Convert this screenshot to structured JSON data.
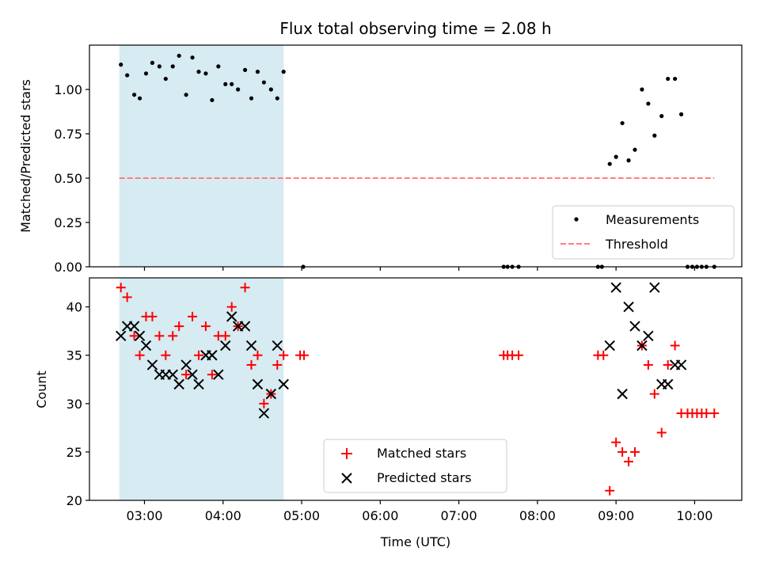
{
  "chart_data": {
    "title": "Flux total observing time = 2.08 h",
    "xlabel": "Time (UTC)",
    "xlim": [
      2.3,
      10.6
    ],
    "x_ticks": [
      {
        "value": 3,
        "label": "03:00"
      },
      {
        "value": 4,
        "label": "04:00"
      },
      {
        "value": 5,
        "label": "05:00"
      },
      {
        "value": 6,
        "label": "06:00"
      },
      {
        "value": 7,
        "label": "07:00"
      },
      {
        "value": 8,
        "label": "08:00"
      },
      {
        "value": 9,
        "label": "09:00"
      },
      {
        "value": 10,
        "label": "10:00"
      }
    ],
    "shaded_span": [
      2.68,
      4.77
    ],
    "top": {
      "type": "scatter",
      "ylabel": "Matched/Predicted stars",
      "ylim": [
        0,
        1.25
      ],
      "y_ticks": [
        {
          "value": 0,
          "label": "0.00"
        },
        {
          "value": 0.25,
          "label": "0.25"
        },
        {
          "value": 0.5,
          "label": "0.50"
        },
        {
          "value": 0.75,
          "label": "0.75"
        },
        {
          "value": 1.0,
          "label": "1.00"
        }
      ],
      "legend": {
        "position": "lower-right",
        "entries": [
          "Measurements",
          "Threshold"
        ]
      },
      "threshold": {
        "name": "Threshold",
        "value": 0.5,
        "x_range": [
          2.68,
          10.25
        ],
        "color": "#ff8080"
      },
      "measurements": {
        "name": "Measurements",
        "color": "#000000",
        "points": [
          [
            2.7,
            1.14
          ],
          [
            2.78,
            1.08
          ],
          [
            2.87,
            0.97
          ],
          [
            2.94,
            0.95
          ],
          [
            3.02,
            1.09
          ],
          [
            3.1,
            1.15
          ],
          [
            3.19,
            1.13
          ],
          [
            3.27,
            1.06
          ],
          [
            3.36,
            1.13
          ],
          [
            3.44,
            1.19
          ],
          [
            3.53,
            0.97
          ],
          [
            3.61,
            1.18
          ],
          [
            3.69,
            1.1
          ],
          [
            3.78,
            1.09
          ],
          [
            3.86,
            0.94
          ],
          [
            3.94,
            1.13
          ],
          [
            4.03,
            1.03
          ],
          [
            4.11,
            1.03
          ],
          [
            4.19,
            1.0
          ],
          [
            4.28,
            1.11
          ],
          [
            4.36,
            0.95
          ],
          [
            4.44,
            1.1
          ],
          [
            4.52,
            1.04
          ],
          [
            4.61,
            1.0
          ],
          [
            4.69,
            0.95
          ],
          [
            4.77,
            1.1
          ],
          [
            5.02,
            0.0
          ],
          [
            7.57,
            0.0
          ],
          [
            7.62,
            0.0
          ],
          [
            7.68,
            0.0
          ],
          [
            7.76,
            0.0
          ],
          [
            8.77,
            0.0
          ],
          [
            8.82,
            0.0
          ],
          [
            8.92,
            0.58
          ],
          [
            9.0,
            0.62
          ],
          [
            9.08,
            0.81
          ],
          [
            9.16,
            0.6
          ],
          [
            9.24,
            0.66
          ],
          [
            9.33,
            1.0
          ],
          [
            9.41,
            0.92
          ],
          [
            9.49,
            0.74
          ],
          [
            9.58,
            0.85
          ],
          [
            9.66,
            1.06
          ],
          [
            9.75,
            1.06
          ],
          [
            9.83,
            0.86
          ],
          [
            9.91,
            0.0
          ],
          [
            9.97,
            0.0
          ],
          [
            10.03,
            0.0
          ],
          [
            10.09,
            0.0
          ],
          [
            10.15,
            0.0
          ],
          [
            10.25,
            0.0
          ]
        ]
      }
    },
    "bottom": {
      "type": "scatter",
      "ylabel": "Count",
      "ylim": [
        20,
        43
      ],
      "y_ticks": [
        {
          "value": 20,
          "label": "20"
        },
        {
          "value": 25,
          "label": "25"
        },
        {
          "value": 30,
          "label": "30"
        },
        {
          "value": 35,
          "label": "35"
        },
        {
          "value": 40,
          "label": "40"
        }
      ],
      "legend": {
        "position": "lower-center",
        "entries": [
          "Matched stars",
          "Predicted stars"
        ]
      },
      "series": [
        {
          "name": "Matched stars",
          "marker": "+",
          "color": "#ff0000",
          "points": [
            [
              2.7,
              42
            ],
            [
              2.78,
              41
            ],
            [
              2.87,
              37
            ],
            [
              2.94,
              35
            ],
            [
              3.02,
              39
            ],
            [
              3.1,
              39
            ],
            [
              3.19,
              37
            ],
            [
              3.27,
              35
            ],
            [
              3.36,
              37
            ],
            [
              3.44,
              38
            ],
            [
              3.53,
              33
            ],
            [
              3.61,
              39
            ],
            [
              3.69,
              35
            ],
            [
              3.78,
              38
            ],
            [
              3.86,
              33
            ],
            [
              3.94,
              37
            ],
            [
              4.03,
              37
            ],
            [
              4.11,
              40
            ],
            [
              4.19,
              38
            ],
            [
              4.28,
              42
            ],
            [
              4.36,
              34
            ],
            [
              4.44,
              35
            ],
            [
              4.52,
              30
            ],
            [
              4.61,
              31
            ],
            [
              4.69,
              34
            ],
            [
              4.77,
              35
            ],
            [
              4.98,
              35
            ],
            [
              5.03,
              35
            ],
            [
              7.57,
              35
            ],
            [
              7.62,
              35
            ],
            [
              7.68,
              35
            ],
            [
              7.76,
              35
            ],
            [
              8.77,
              35
            ],
            [
              8.84,
              35
            ],
            [
              8.92,
              21
            ],
            [
              9.0,
              26
            ],
            [
              9.08,
              25
            ],
            [
              9.16,
              24
            ],
            [
              9.24,
              25
            ],
            [
              9.33,
              36
            ],
            [
              9.41,
              34
            ],
            [
              9.49,
              31
            ],
            [
              9.58,
              27
            ],
            [
              9.66,
              34
            ],
            [
              9.75,
              36
            ],
            [
              9.83,
              29
            ],
            [
              9.91,
              29
            ],
            [
              9.97,
              29
            ],
            [
              10.03,
              29
            ],
            [
              10.09,
              29
            ],
            [
              10.15,
              29
            ],
            [
              10.25,
              29
            ]
          ]
        },
        {
          "name": "Predicted stars",
          "marker": "x",
          "color": "#000000",
          "points": [
            [
              2.7,
              37
            ],
            [
              2.78,
              38
            ],
            [
              2.87,
              38
            ],
            [
              2.94,
              37
            ],
            [
              3.02,
              36
            ],
            [
              3.1,
              34
            ],
            [
              3.19,
              33
            ],
            [
              3.27,
              33
            ],
            [
              3.36,
              33
            ],
            [
              3.44,
              32
            ],
            [
              3.53,
              34
            ],
            [
              3.61,
              33
            ],
            [
              3.69,
              32
            ],
            [
              3.78,
              35
            ],
            [
              3.86,
              35
            ],
            [
              3.94,
              33
            ],
            [
              4.03,
              36
            ],
            [
              4.11,
              39
            ],
            [
              4.19,
              38
            ],
            [
              4.28,
              38
            ],
            [
              4.36,
              36
            ],
            [
              4.44,
              32
            ],
            [
              4.52,
              29
            ],
            [
              4.61,
              31
            ],
            [
              4.69,
              36
            ],
            [
              4.77,
              32
            ],
            [
              8.92,
              36
            ],
            [
              9.0,
              42
            ],
            [
              9.08,
              31
            ],
            [
              9.16,
              40
            ],
            [
              9.24,
              38
            ],
            [
              9.33,
              36
            ],
            [
              9.41,
              37
            ],
            [
              9.49,
              42
            ],
            [
              9.58,
              32
            ],
            [
              9.66,
              32
            ],
            [
              9.75,
              34
            ],
            [
              9.83,
              34
            ]
          ]
        }
      ]
    }
  }
}
